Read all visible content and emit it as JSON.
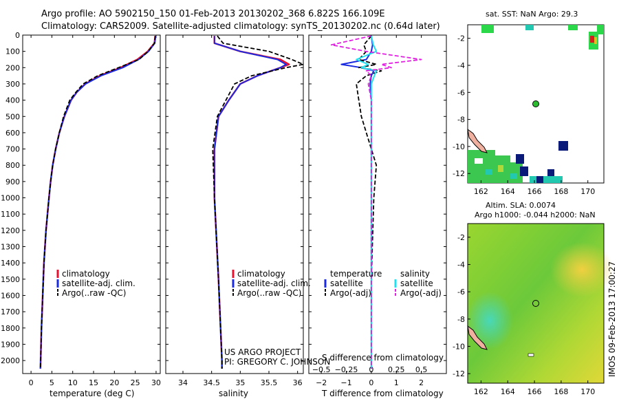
{
  "header": {
    "title_line1": "Argo profile: AO 5902150_150 01-Feb-2013 20130202_368 6.822S 166.109E",
    "title_line2": "Climatology: CARS2009. Satellite-adjusted climatology: synTS_20130202.nc (0.64d later)"
  },
  "colors": {
    "climatology": "#e8102c",
    "satellite": "#1a2ae0",
    "argo": "#000000",
    "sal_satellite": "#22e0f0",
    "sal_argo": "#e020e0",
    "ocean_fill": "#7ed020",
    "land_fill": "#f0b0a0"
  },
  "credits": {
    "project": "US ARGO PROJECT",
    "pi": "PI: GREGORY C. JOHNSON",
    "stamp": "IMOS 09-Feb-2013 17:00:27"
  },
  "chart_data": [
    {
      "type": "line",
      "panel": "temperature",
      "xlabel": "temperature (deg C)",
      "ylabel": "",
      "xlim": [
        -2,
        31
      ],
      "ylim": [
        2080,
        0
      ],
      "xticks": [
        0,
        5,
        10,
        15,
        20,
        25,
        30
      ],
      "yticks": [
        0,
        100,
        200,
        300,
        400,
        500,
        600,
        700,
        800,
        900,
        1000,
        1100,
        1200,
        1300,
        1400,
        1500,
        1600,
        1700,
        1800,
        1900,
        2000
      ],
      "depth": [
        5,
        50,
        100,
        150,
        200,
        250,
        300,
        350,
        400,
        500,
        600,
        700,
        800,
        900,
        1000,
        1200,
        1400,
        1600,
        1800,
        2000,
        2050
      ],
      "series": [
        {
          "name": "climatology",
          "values": [
            29.8,
            29.6,
            28.0,
            25.5,
            21.5,
            16.5,
            13.0,
            11.0,
            9.6,
            8.0,
            6.8,
            5.9,
            5.2,
            4.7,
            4.3,
            3.6,
            3.1,
            2.8,
            2.5,
            2.3,
            2.25
          ]
        },
        {
          "name": "satellite-adj. clim.",
          "values": [
            29.9,
            29.7,
            28.2,
            25.8,
            22.0,
            16.8,
            13.1,
            11.0,
            9.6,
            8.0,
            6.8,
            5.9,
            5.2,
            4.7,
            4.3,
            3.6,
            3.1,
            2.8,
            2.5,
            2.3,
            2.25
          ]
        },
        {
          "name": "Argo(..raw -QC)",
          "values": [
            29.8,
            29.6,
            28.1,
            25.9,
            21.0,
            16.0,
            12.5,
            10.8,
            9.3,
            7.8,
            6.8,
            5.9,
            5.2,
            4.7,
            4.3,
            3.6,
            3.1,
            2.8,
            2.5,
            2.3,
            2.25
          ]
        }
      ],
      "legend": [
        "climatology",
        "satellite-adj. clim.",
        "Argo(..raw -QC)"
      ]
    },
    {
      "type": "line",
      "panel": "salinity",
      "xlabel": "salinity",
      "ylabel": "",
      "xlim": [
        33.7,
        36.1
      ],
      "ylim": [
        2080,
        0
      ],
      "xticks": [
        34,
        34.5,
        35,
        35.5,
        36
      ],
      "xtick_labels": [
        "34",
        "34.5",
        "35",
        "35.5",
        "36"
      ],
      "depth": [
        5,
        50,
        100,
        150,
        180,
        200,
        250,
        300,
        400,
        500,
        700,
        1000,
        1500,
        2000,
        2050
      ],
      "series": [
        {
          "name": "climatology",
          "values": [
            34.55,
            34.55,
            35.0,
            35.7,
            35.85,
            35.7,
            35.3,
            35.0,
            34.8,
            34.62,
            34.55,
            34.55,
            34.62,
            34.68,
            34.68
          ]
        },
        {
          "name": "satellite-adj. clim.",
          "values": [
            34.55,
            34.55,
            35.0,
            35.65,
            35.8,
            35.7,
            35.3,
            35.0,
            34.8,
            34.62,
            34.55,
            34.55,
            34.62,
            34.68,
            34.68
          ]
        },
        {
          "name": "Argo(..raw -QC)",
          "values": [
            34.6,
            34.7,
            35.5,
            35.9,
            36.1,
            35.8,
            35.2,
            34.9,
            34.75,
            34.6,
            34.52,
            34.55,
            34.62,
            34.68,
            34.68
          ]
        }
      ],
      "legend": [
        "climatology",
        "satellite-adj. clim.",
        "Argo(..raw -QC)"
      ]
    },
    {
      "type": "line",
      "panel": "difference",
      "xlabel": "T difference from climatology",
      "xlabel2": "S difference from climatology",
      "xlim": [
        -2.5,
        3
      ],
      "ylim": [
        2080,
        0
      ],
      "xticks": [
        -2,
        -1,
        0,
        1,
        2
      ],
      "xtick_labels": [
        "−2",
        "−1",
        "0",
        "1",
        "2"
      ],
      "s_xticks": [
        -0.5,
        -0.25,
        0,
        0.25,
        0.5
      ],
      "s_xtick_labels": [
        "−0.5",
        "−0.25",
        "0",
        "0.25",
        "0.5"
      ],
      "s_scale": 0.25,
      "depth": [
        5,
        60,
        100,
        150,
        180,
        200,
        220,
        250,
        300,
        400,
        500,
        600,
        700,
        800,
        1000,
        1500,
        2000,
        2050
      ],
      "series": [
        {
          "name": "temperature satellite",
          "unit": "T",
          "values": [
            0.0,
            0.05,
            0.0,
            -0.2,
            -1.2,
            -0.4,
            0.1,
            0.0,
            -0.05,
            0.0,
            0.0,
            0.0,
            0.0,
            0.0,
            0.0,
            0.0,
            0.0,
            0.0
          ]
        },
        {
          "name": "temperature Argo(-adj)",
          "unit": "T",
          "values": [
            0.0,
            -0.3,
            -0.2,
            -0.5,
            0.2,
            -0.5,
            0.4,
            -0.2,
            -0.6,
            -0.5,
            -0.4,
            -0.2,
            0.0,
            0.2,
            0.1,
            0.0,
            0.0,
            0.0
          ]
        },
        {
          "name": "salinity satellite",
          "unit": "S",
          "values": [
            0.0,
            0.02,
            0.05,
            -0.15,
            -0.03,
            -0.1,
            0.05,
            0.03,
            0.0,
            0.0,
            0.0,
            0.0,
            0.0,
            0.0,
            0.0,
            0.0,
            0.0,
            0.0
          ]
        },
        {
          "name": "salinity Argo(-adj)",
          "unit": "S",
          "values": [
            0.0,
            -0.4,
            -0.05,
            0.5,
            0.1,
            0.2,
            -0.05,
            0.0,
            -0.03,
            0.0,
            0.0,
            0.0,
            0.0,
            0.0,
            0.0,
            0.0,
            0.0,
            0.0
          ]
        }
      ],
      "legend": {
        "temp_header": "temperature",
        "sal_header": "salinity",
        "temp_items": [
          "satellite",
          "Argo(-adj)"
        ],
        "sal_items": [
          "satellite",
          "Argo(-adj)"
        ]
      }
    },
    {
      "type": "heatmap",
      "panel": "sst_map",
      "title": "sat. SST: NaN Argo: 29.3",
      "xlim": [
        161,
        171.2
      ],
      "ylim": [
        -12.7,
        -1.0
      ],
      "xticks": [
        162,
        164,
        166,
        168,
        170
      ],
      "yticks": [
        -2,
        -4,
        -6,
        -8,
        -10,
        -12
      ],
      "argo_position": {
        "lon": 166.109,
        "lat": -6.822
      }
    },
    {
      "type": "heatmap",
      "panel": "sla_map",
      "title": "Altim. SLA: 0.0074",
      "subtitle": "Argo h1000: -0.044 h2000: NaN",
      "xlim": [
        161,
        171.2
      ],
      "ylim": [
        -12.7,
        -1.0
      ],
      "xticks": [
        162,
        164,
        166,
        168,
        170
      ],
      "yticks": [
        -2,
        -4,
        -6,
        -8,
        -10,
        -12
      ],
      "argo_position": {
        "lon": 166.109,
        "lat": -6.822
      }
    }
  ]
}
